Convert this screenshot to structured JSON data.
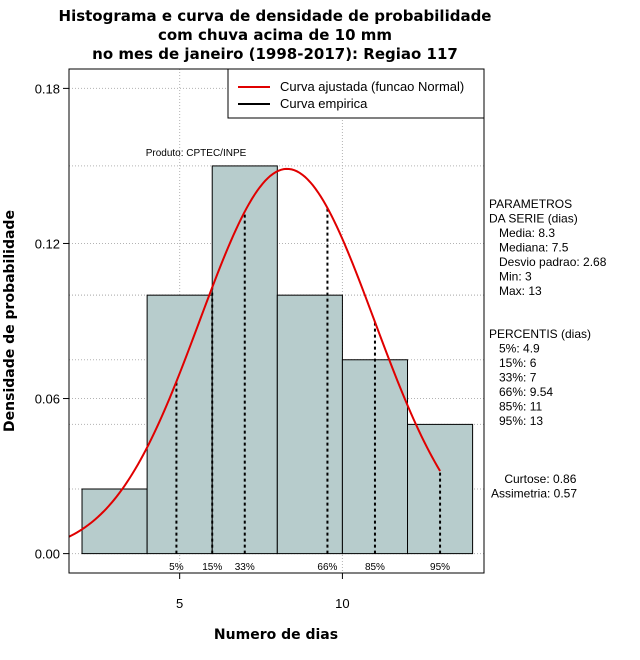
{
  "chart_data": {
    "type": "bar",
    "title_lines": [
      "Histograma e curva de densidade de probabilidade",
      "com chuva acima de 10 mm",
      "no mes de janeiro (1998-2017): Regiao 117"
    ],
    "xlabel": "Numero de dias",
    "ylabel": "Densidade de probabilidade",
    "xlim": [
      1.6,
      14.35
    ],
    "ylim": [
      -0.0075,
      0.1875
    ],
    "x_ticks": [
      5,
      10
    ],
    "y_ticks": [
      0.0,
      0.06,
      0.12,
      0.18
    ],
    "y_tick_labels": [
      "0.00",
      "0.06",
      "0.12",
      "0.18"
    ],
    "grid": true,
    "bins": [
      {
        "start": 2,
        "end": 4,
        "density": 0.025
      },
      {
        "start": 4,
        "end": 6,
        "density": 0.1
      },
      {
        "start": 6,
        "end": 8,
        "density": 0.15
      },
      {
        "start": 8,
        "end": 10,
        "density": 0.1
      },
      {
        "start": 10,
        "end": 12,
        "density": 0.075
      },
      {
        "start": 12,
        "end": 14,
        "density": 0.05
      }
    ],
    "series": [
      {
        "name": "Curva ajustada (funcao Normal)",
        "color": "#e00000",
        "mean": 8.3,
        "sd": 2.68,
        "x_range": [
          1.6,
          13
        ]
      },
      {
        "name": "Curva empirica",
        "color": "#000000"
      }
    ],
    "legend_position": "top-right",
    "percentile_markers": [
      {
        "label": "5%",
        "x": 4.9
      },
      {
        "label": "15%",
        "x": 6
      },
      {
        "label": "33%",
        "x": 7
      },
      {
        "label": "66%",
        "x": 9.54
      },
      {
        "label": "85%",
        "x": 11
      },
      {
        "label": "95%",
        "x": 13
      }
    ],
    "annotation": "Produto: CPTEC/INPE",
    "bar_color": "#b7cccc"
  },
  "side_panel": {
    "params_lines": [
      "PARAMETROS",
      "DA SERIE (dias)",
      "   Media: 8.3",
      "   Mediana: 7.5",
      "   Desvio padrao: 2.68",
      "   Min: 3",
      "   Max: 13"
    ],
    "percentis_lines": [
      "PERCENTIS (dias)",
      "   5%: 4.9",
      "   15%: 6",
      "   33%: 7",
      "   66%: 9.54",
      "   85%: 11",
      "   95%: 13"
    ],
    "stats_lines": [
      "    Curtose: 0.86",
      "Assimetria: 0.57"
    ]
  }
}
